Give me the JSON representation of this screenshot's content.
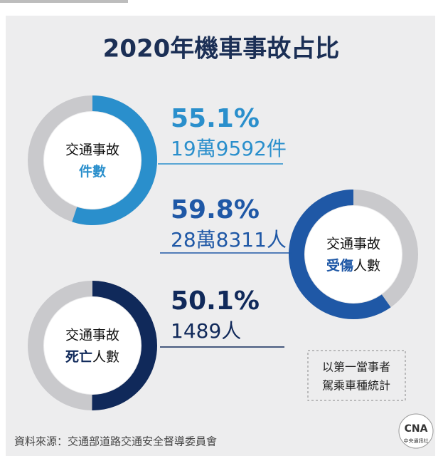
{
  "title": "2020年機車事故占比",
  "chart_data": [
    {
      "type": "donut",
      "center_label": "交通事故",
      "highlight": "件數",
      "values": [
        55.1
      ],
      "value_labels": [
        "55.1%"
      ],
      "count_label": "19萬9592件",
      "color": "#2a8fcc",
      "direction": "clockwise"
    },
    {
      "type": "donut",
      "center_label": "交通事故",
      "highlight": "受傷",
      "rest": "人數",
      "values": [
        59.8
      ],
      "value_labels": [
        "59.8%"
      ],
      "count_label": "28萬8311人",
      "color": "#1f58a6",
      "direction": "counterclockwise"
    },
    {
      "type": "donut",
      "center_label": "交通事故",
      "highlight": "死亡",
      "rest": "人數",
      "values": [
        50.1
      ],
      "value_labels": [
        "50.1%"
      ],
      "count_label": "1489人",
      "color": "#10295a",
      "direction": "clockwise"
    }
  ],
  "note": [
    "以第一當事者",
    "駕乘車種統計"
  ],
  "source": "資料來源：交通部道路交通安全督導委員會",
  "logo": {
    "mark": "CNA",
    "name": "中央通訊社"
  }
}
